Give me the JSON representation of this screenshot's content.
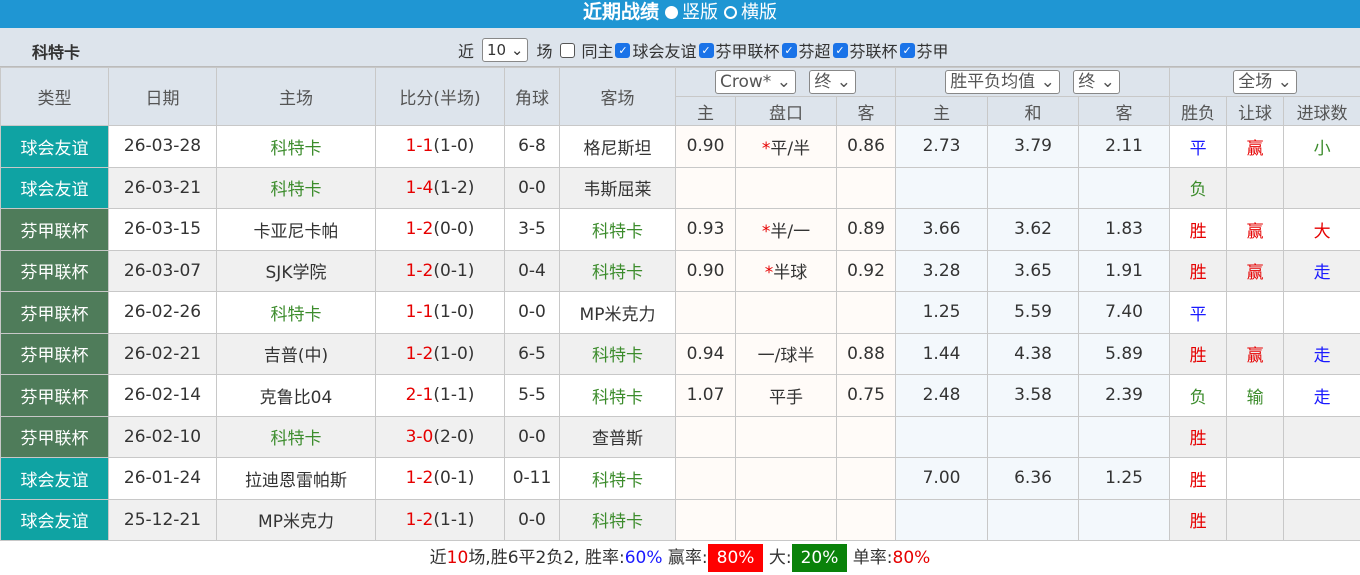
{
  "header": {
    "title": "近期战绩",
    "options": [
      "竖版",
      "横版"
    ],
    "selected": 0
  },
  "filter": {
    "team": "科特卡",
    "prefix": "近",
    "count": "10",
    "suffix": "场",
    "same_home": "同主",
    "same_home_checked": false,
    "leagues": [
      {
        "label": "球会友谊",
        "checked": true
      },
      {
        "label": "芬甲联杯",
        "checked": true
      },
      {
        "label": "芬超",
        "checked": true
      },
      {
        "label": "芬联杯",
        "checked": true
      },
      {
        "label": "芬甲",
        "checked": true
      }
    ]
  },
  "columns": {
    "type": "类型",
    "date": "日期",
    "home": "主场",
    "score": "比分(半场)",
    "corner": "角球",
    "away": "客场",
    "company": "Crow*",
    "odds_time": "终",
    "avg": "胜平负均值",
    "avg_time": "终",
    "scope": "全场",
    "ah_home": "主",
    "ah_line": "盘口",
    "ah_away": "客",
    "eu_home": "主",
    "eu_draw": "和",
    "eu_away": "客",
    "result": "胜负",
    "handicap": "让球",
    "goals": "进球数"
  },
  "colors": {
    "friendly": "#0fa3a3",
    "cup": "#4f7c5a",
    "header_bar": "#1f96d3"
  },
  "rows": [
    {
      "type": "球会友谊",
      "k": "f",
      "date": "26-03-28",
      "home": "科特卡",
      "ft": "1-1",
      "ht": "(1-0)",
      "corner": "6-8",
      "away": "格尼斯坦",
      "ah_h": "0.90",
      "star": "*",
      "line": "平/半",
      "ah_a": "0.86",
      "eh": "2.73",
      "ed": "3.79",
      "ea": "2.11",
      "res": "平",
      "hc": "赢",
      "gl": "小"
    },
    {
      "type": "球会友谊",
      "k": "f",
      "date": "26-03-21",
      "home": "科特卡",
      "ft": "1-4",
      "ht": "(1-2)",
      "corner": "0-0",
      "away": "韦斯屈莱",
      "ah_h": "",
      "star": "",
      "line": "",
      "ah_a": "",
      "eh": "",
      "ed": "",
      "ea": "",
      "res": "负",
      "hc": "",
      "gl": ""
    },
    {
      "type": "芬甲联杯",
      "k": "c",
      "date": "26-03-15",
      "home": "卡亚尼卡帕",
      "ft": "1-2",
      "ht": "(0-0)",
      "corner": "3-5",
      "away": "科特卡",
      "ah_h": "0.93",
      "star": "*",
      "line": "半/一",
      "ah_a": "0.89",
      "eh": "3.66",
      "ed": "3.62",
      "ea": "1.83",
      "res": "胜",
      "hc": "赢",
      "gl": "大"
    },
    {
      "type": "芬甲联杯",
      "k": "c",
      "date": "26-03-07",
      "home": "SJK学院",
      "ft": "1-2",
      "ht": "(0-1)",
      "corner": "0-4",
      "away": "科特卡",
      "ah_h": "0.90",
      "star": "*",
      "line": "半球",
      "ah_a": "0.92",
      "eh": "3.28",
      "ed": "3.65",
      "ea": "1.91",
      "res": "胜",
      "hc": "赢",
      "gl": "走"
    },
    {
      "type": "芬甲联杯",
      "k": "c",
      "date": "26-02-26",
      "home": "科特卡",
      "ft": "1-1",
      "ht": "(1-0)",
      "corner": "0-0",
      "away": "MP米克力",
      "ah_h": "",
      "star": "",
      "line": "",
      "ah_a": "",
      "eh": "1.25",
      "ed": "5.59",
      "ea": "7.40",
      "res": "平",
      "hc": "",
      "gl": ""
    },
    {
      "type": "芬甲联杯",
      "k": "c",
      "date": "26-02-21",
      "home": "吉普(中)",
      "ft": "1-2",
      "ht": "(1-0)",
      "corner": "6-5",
      "away": "科特卡",
      "ah_h": "0.94",
      "star": "",
      "line": "一/球半",
      "ah_a": "0.88",
      "eh": "1.44",
      "ed": "4.38",
      "ea": "5.89",
      "res": "胜",
      "hc": "赢",
      "gl": "走"
    },
    {
      "type": "芬甲联杯",
      "k": "c",
      "date": "26-02-14",
      "home": "克鲁比04",
      "ft": "2-1",
      "ht": "(1-1)",
      "corner": "5-5",
      "away": "科特卡",
      "ah_h": "1.07",
      "star": "",
      "line": "平手",
      "ah_a": "0.75",
      "eh": "2.48",
      "ed": "3.58",
      "ea": "2.39",
      "res": "负",
      "hc": "输",
      "gl": "走"
    },
    {
      "type": "芬甲联杯",
      "k": "c",
      "date": "26-02-10",
      "home": "科特卡",
      "ft": "3-0",
      "ht": "(2-0)",
      "corner": "0-0",
      "away": "查普斯",
      "ah_h": "",
      "star": "",
      "line": "",
      "ah_a": "",
      "eh": "",
      "ed": "",
      "ea": "",
      "res": "胜",
      "hc": "",
      "gl": ""
    },
    {
      "type": "球会友谊",
      "k": "f",
      "date": "26-01-24",
      "home": "拉迪恩雷帕斯",
      "ft": "1-2",
      "ht": "(0-1)",
      "corner": "0-11",
      "away": "科特卡",
      "ah_h": "",
      "star": "",
      "line": "",
      "ah_a": "",
      "eh": "7.00",
      "ed": "6.36",
      "ea": "1.25",
      "res": "胜",
      "hc": "",
      "gl": ""
    },
    {
      "type": "球会友谊",
      "k": "f",
      "date": "25-12-21",
      "home": "MP米克力",
      "ft": "1-2",
      "ht": "(1-1)",
      "corner": "0-0",
      "away": "科特卡",
      "ah_h": "",
      "star": "",
      "line": "",
      "ah_a": "",
      "eh": "",
      "ed": "",
      "ea": "",
      "res": "胜",
      "hc": "",
      "gl": ""
    }
  ],
  "summary": {
    "p1": "近",
    "n": "10",
    "p2": "场,胜6平2负2, 胜率:",
    "win_rate": "60%",
    "p3": " 赢率:",
    "cover_rate": "80%",
    "p4": " 大:",
    "over_rate": "20%",
    "p5": " 单率:",
    "odd_rate": "80%"
  }
}
